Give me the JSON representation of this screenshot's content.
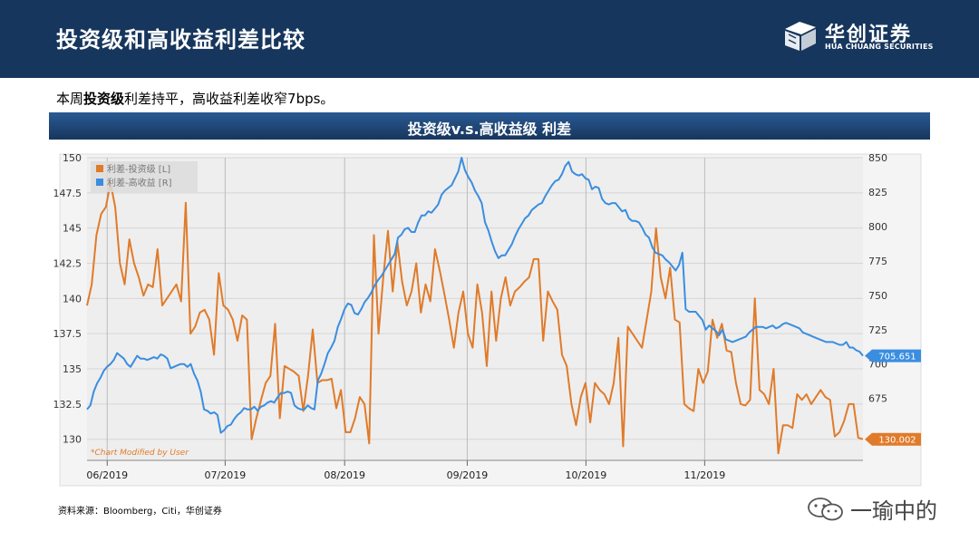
{
  "header": {
    "title": "投资级和高收益利差比较"
  },
  "logo": {
    "name_cn": "华创证券",
    "name_en": "HUA CHUANG SECURITIES"
  },
  "summary": {
    "prefix": "本周",
    "bold": "投资级",
    "rest": "利差持平，高收益利差收窄7bps。"
  },
  "chart_banner": {
    "title": "投资级v.s.高收益级 利差"
  },
  "source": {
    "text": "资料来源：Bloomberg，Citi，华创证券"
  },
  "watermark": {
    "text": "一瑜中的"
  },
  "colors": {
    "header_bg": "#17365d",
    "ig": "#e07b2a",
    "hy": "#3a8ee0",
    "plot_bg": "#f1f1f1"
  },
  "chart_data": {
    "type": "line",
    "title": "投资级v.s.高收益级 利差",
    "annotation": "*Chart Modified by User",
    "legend_position": "top-left",
    "grid": true,
    "x_tick_labels": [
      "06/2019",
      "07/2019",
      "08/2019",
      "09/2019",
      "10/2019",
      "11/2019"
    ],
    "left_axis": {
      "min": 128.5,
      "max": 150,
      "ticks": [
        "150",
        "147.5",
        "145",
        "142.5",
        "140",
        "137.5",
        "135",
        "132.5",
        "130"
      ]
    },
    "right_axis": {
      "min": 630,
      "max": 850,
      "ticks": [
        "850",
        "825",
        "800",
        "775",
        "750",
        "725",
        "700",
        "675"
      ]
    },
    "series": [
      {
        "name": "利差-投资级 [L]",
        "axis": "left",
        "color": "#e07b2a",
        "last_value_label": "130.002",
        "values": [
          139.5,
          141,
          144.5,
          146,
          146.5,
          148.2,
          146.5,
          142.5,
          141,
          144.2,
          142.5,
          141.5,
          140.2,
          141,
          140.8,
          143.5,
          139.5,
          140,
          140.5,
          141,
          139.8,
          146.8,
          137.5,
          138,
          139,
          139.2,
          138.5,
          136,
          141.8,
          139.5,
          139.2,
          138.5,
          137,
          138.8,
          138.5,
          130,
          131.5,
          132.8,
          134,
          134.5,
          138.2,
          131.5,
          135.2,
          135,
          134.8,
          134.5,
          132,
          134.5,
          137.8,
          134,
          134.2,
          134.2,
          134.3,
          132.2,
          133.5,
          130.5,
          130.5,
          131.5,
          133,
          132.5,
          129.7,
          144.5,
          137.5,
          141.5,
          144.8,
          140.5,
          144,
          141.2,
          139.5,
          140.5,
          142.5,
          139,
          141,
          139.8,
          143.5,
          142,
          140.3,
          138.5,
          136.5,
          139,
          140.5,
          137.5,
          136.5,
          141,
          139,
          135.2,
          140.5,
          137,
          140,
          141.5,
          139.5,
          140.5,
          140.8,
          141.2,
          141.5,
          142.8,
          142.8,
          137,
          140.5,
          139.8,
          139.2,
          136,
          135.2,
          132.5,
          131,
          133,
          134,
          131.2,
          134,
          133.5,
          133.2,
          132.5,
          134,
          137.2,
          129.5,
          138,
          137.5,
          137,
          136.5,
          138.5,
          140.5,
          145,
          141.5,
          140,
          142.2,
          138.5,
          138.3,
          132.5,
          132.2,
          132,
          135,
          134,
          134.8,
          138.5,
          137.2,
          138.2,
          136.3,
          136.2,
          134,
          132.5,
          132.4,
          132.8,
          140,
          133.5,
          133.2,
          132.5,
          135,
          129,
          131,
          131,
          130.8,
          133.2,
          132.8,
          133.2,
          132.5,
          133,
          133.5,
          133,
          132.8,
          130.2,
          130.5,
          131.3,
          132.5,
          132.5,
          130.1,
          130
        ]
      },
      {
        "name": "利差-高收益 [R]",
        "axis": "right",
        "color": "#3a8ee0",
        "last_value_label": "705.651",
        "values": [
          667,
          670,
          680,
          686,
          690,
          695,
          698,
          700,
          703,
          708,
          706,
          704,
          700,
          698,
          702,
          706,
          704,
          704,
          703,
          704,
          705,
          704,
          707,
          706,
          704,
          697,
          698,
          699,
          700,
          700,
          698,
          700,
          693,
          688,
          680,
          667,
          666,
          664,
          665,
          663,
          650,
          652,
          655,
          656,
          660,
          663,
          665,
          668,
          667,
          667,
          669,
          666,
          669,
          670,
          672,
          673,
          672,
          676,
          679,
          679,
          680,
          679,
          670,
          668,
          667,
          667,
          670,
          668,
          667,
          688,
          693,
          700,
          708,
          712,
          717,
          727,
          733,
          740,
          744,
          743,
          737,
          736,
          740,
          745,
          748,
          752,
          757,
          761,
          764,
          768,
          772,
          776,
          780,
          792,
          794,
          798,
          799,
          796,
          796,
          803,
          808,
          808,
          811,
          810,
          813,
          816,
          823,
          826,
          828,
          830,
          835,
          840,
          850,
          841,
          836,
          832,
          826,
          822,
          817,
          803,
          797,
          789,
          782,
          777,
          779,
          779,
          783,
          787,
          793,
          798,
          802,
          806,
          808,
          812,
          814,
          816,
          817,
          822,
          826,
          830,
          833,
          834,
          838,
          844,
          847,
          840,
          838,
          837,
          838,
          835,
          834,
          827,
          829,
          828,
          820,
          817,
          816,
          817,
          817,
          814,
          811,
          812,
          806,
          804,
          804,
          803,
          799,
          794,
          792,
          785,
          781,
          780,
          779,
          776,
          774,
          771,
          768,
          772,
          781,
          740,
          738,
          738,
          738,
          735,
          732,
          725,
          728,
          726,
          724,
          721,
          725,
          718,
          717,
          716,
          717,
          718,
          719,
          720,
          723,
          725,
          727,
          727,
          727,
          726,
          727,
          728,
          726,
          727,
          729,
          730,
          729,
          728,
          727,
          726,
          723,
          722,
          721,
          720,
          719,
          718,
          717,
          716,
          716,
          716,
          715,
          714,
          714,
          716,
          712,
          712,
          710,
          709,
          706
        ]
      }
    ]
  }
}
